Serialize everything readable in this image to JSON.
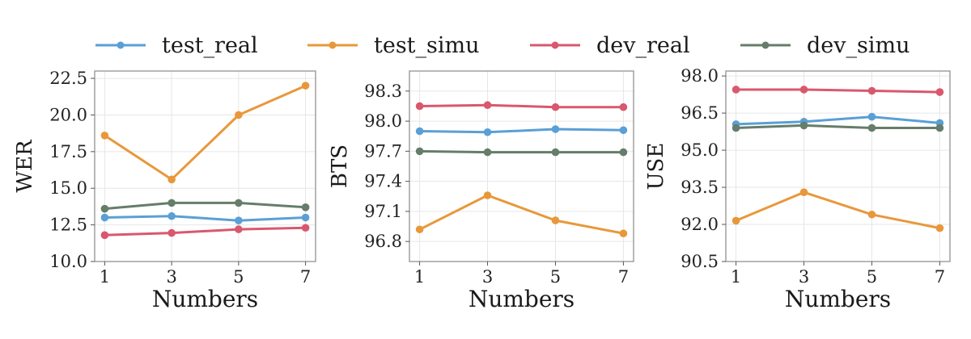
{
  "legend": {
    "placement": "top-center",
    "entries": [
      {
        "name": "test_real",
        "color": "#5a9fd6"
      },
      {
        "name": "test_simu",
        "color": "#e8983a"
      },
      {
        "name": "dev_real",
        "color": "#d9586e"
      },
      {
        "name": "dev_simu",
        "color": "#657d6a"
      }
    ]
  },
  "chart_data": [
    {
      "type": "line",
      "xlabel": "Numbers",
      "ylabel": "WER",
      "x": [
        1,
        3,
        5,
        7
      ],
      "xticks": [
        "1",
        "3",
        "5",
        "7"
      ],
      "ylim": [
        10.0,
        23.0
      ],
      "yticks": [
        "10.0",
        "12.5",
        "15.0",
        "17.5",
        "20.0",
        "22.5"
      ],
      "grid": true,
      "series": [
        {
          "name": "test_real",
          "color": "#5a9fd6",
          "values": [
            13.0,
            13.1,
            12.8,
            13.0
          ]
        },
        {
          "name": "test_simu",
          "color": "#e8983a",
          "values": [
            18.6,
            15.6,
            20.0,
            22.0
          ]
        },
        {
          "name": "dev_real",
          "color": "#d9586e",
          "values": [
            11.8,
            11.95,
            12.2,
            12.3
          ]
        },
        {
          "name": "dev_simu",
          "color": "#657d6a",
          "values": [
            13.6,
            14.0,
            14.0,
            13.7
          ]
        }
      ]
    },
    {
      "type": "line",
      "xlabel": "Numbers",
      "ylabel": "BTS",
      "x": [
        1,
        3,
        5,
        7
      ],
      "xticks": [
        "1",
        "3",
        "5",
        "7"
      ],
      "ylim": [
        96.6,
        98.5
      ],
      "yticks": [
        "96.8",
        "97.1",
        "97.4",
        "97.7",
        "98.0",
        "98.3"
      ],
      "grid": true,
      "series": [
        {
          "name": "test_real",
          "color": "#5a9fd6",
          "values": [
            97.9,
            97.89,
            97.92,
            97.91
          ]
        },
        {
          "name": "test_simu",
          "color": "#e8983a",
          "values": [
            96.92,
            97.26,
            97.01,
            96.88
          ]
        },
        {
          "name": "dev_real",
          "color": "#d9586e",
          "values": [
            98.15,
            98.16,
            98.14,
            98.14
          ]
        },
        {
          "name": "dev_simu",
          "color": "#657d6a",
          "values": [
            97.7,
            97.69,
            97.69,
            97.69
          ]
        }
      ]
    },
    {
      "type": "line",
      "xlabel": "Numbers",
      "ylabel": "USE",
      "x": [
        1,
        3,
        5,
        7
      ],
      "xticks": [
        "1",
        "3",
        "5",
        "7"
      ],
      "ylim": [
        90.5,
        98.2
      ],
      "yticks": [
        "90.5",
        "92.0",
        "93.5",
        "95.0",
        "96.5",
        "98.0"
      ],
      "grid": true,
      "series": [
        {
          "name": "test_real",
          "color": "#5a9fd6",
          "values": [
            96.05,
            96.15,
            96.35,
            96.1
          ]
        },
        {
          "name": "test_simu",
          "color": "#e8983a",
          "values": [
            92.15,
            93.3,
            92.4,
            91.85
          ]
        },
        {
          "name": "dev_real",
          "color": "#d9586e",
          "values": [
            97.45,
            97.45,
            97.4,
            97.35
          ]
        },
        {
          "name": "dev_simu",
          "color": "#657d6a",
          "values": [
            95.9,
            96.0,
            95.9,
            95.9
          ]
        }
      ]
    }
  ]
}
